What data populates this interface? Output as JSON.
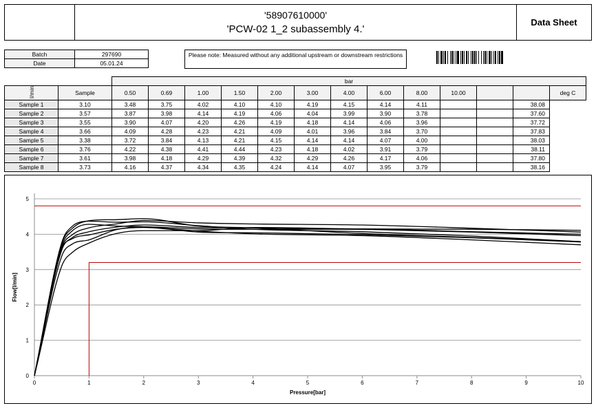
{
  "header": {
    "line1": "'58907610000'",
    "line2": "'PCW-02 1_2 subassembly 4.'",
    "doc_type": "Data Sheet"
  },
  "info": {
    "batch_label": "Batch",
    "batch_value": "297690",
    "date_label": "Date",
    "date_value": "05.01.24"
  },
  "note": "Please note: Measured without any additional upstream or downstream restrictions",
  "table": {
    "unit_label": "l/min",
    "pressure_unit": "bar",
    "sample_header": "Sample",
    "pressures": [
      "0.50",
      "0.69",
      "1.00",
      "1.50",
      "2.00",
      "3.00",
      "4.00",
      "6.00",
      "8.00",
      "10.00",
      "",
      ""
    ],
    "temp_header": "deg C",
    "rows": [
      {
        "name": "Sample 1",
        "values": [
          "3.10",
          "3.48",
          "3.75",
          "4.02",
          "4.10",
          "4.10",
          "4.19",
          "4.15",
          "4.14",
          "4.11",
          "",
          ""
        ],
        "temp": "38.08"
      },
      {
        "name": "Sample 2",
        "values": [
          "3.57",
          "3.87",
          "3.98",
          "4.14",
          "4.19",
          "4.06",
          "4.04",
          "3.99",
          "3.90",
          "3.78",
          "",
          ""
        ],
        "temp": "37.60"
      },
      {
        "name": "Sample 3",
        "values": [
          "3.55",
          "3.90",
          "4.07",
          "4.20",
          "4.26",
          "4.19",
          "4.18",
          "4.14",
          "4.06",
          "3.96",
          "",
          ""
        ],
        "temp": "37.72"
      },
      {
        "name": "Sample 4",
        "values": [
          "3.66",
          "4.09",
          "4.28",
          "4.23",
          "4.21",
          "4.09",
          "4.01",
          "3.96",
          "3.84",
          "3.70",
          "",
          ""
        ],
        "temp": "37.83"
      },
      {
        "name": "Sample 5",
        "values": [
          "3.38",
          "3.72",
          "3.84",
          "4.13",
          "4.21",
          "4.15",
          "4.14",
          "4.14",
          "4.07",
          "4.00",
          "",
          ""
        ],
        "temp": "38.03"
      },
      {
        "name": "Sample 6",
        "values": [
          "3.76",
          "4.22",
          "4.38",
          "4.41",
          "4.44",
          "4.23",
          "4.18",
          "4.02",
          "3.91",
          "3.79",
          "",
          ""
        ],
        "temp": "38.11"
      },
      {
        "name": "Sample 7",
        "values": [
          "3.61",
          "3.98",
          "4.18",
          "4.29",
          "4.39",
          "4.32",
          "4.29",
          "4.26",
          "4.17",
          "4.06",
          "",
          ""
        ],
        "temp": "37.80"
      },
      {
        "name": "Sample 8",
        "values": [
          "3.73",
          "4.16",
          "4.37",
          "4.34",
          "4.35",
          "4.24",
          "4.14",
          "4.07",
          "3.95",
          "3.79",
          "",
          ""
        ],
        "temp": "38.16"
      }
    ]
  },
  "chart_data": {
    "type": "line",
    "title": "",
    "xlabel": "Pressure[bar]",
    "ylabel": "Flow[l/min]",
    "xlim": [
      0,
      10
    ],
    "ylim": [
      0,
      5
    ],
    "xticks": [
      "0",
      "1",
      "2",
      "3",
      "4",
      "5",
      "6",
      "7",
      "8",
      "9",
      "10"
    ],
    "yticks": [
      "0",
      "1",
      "2",
      "3",
      "4",
      "5"
    ],
    "grid": "horizontal",
    "series_color": "#000000",
    "limit_color": "#c00000",
    "x": [
      0,
      0.5,
      0.69,
      1.0,
      1.5,
      2.0,
      3.0,
      4.0,
      6.0,
      8.0,
      10.0
    ],
    "series": [
      {
        "values": [
          0,
          3.1,
          3.48,
          3.75,
          4.02,
          4.1,
          4.1,
          4.19,
          4.15,
          4.14,
          4.11
        ]
      },
      {
        "values": [
          0,
          3.57,
          3.87,
          3.98,
          4.14,
          4.19,
          4.06,
          4.04,
          3.99,
          3.9,
          3.78
        ]
      },
      {
        "values": [
          0,
          3.55,
          3.9,
          4.07,
          4.2,
          4.26,
          4.19,
          4.18,
          4.14,
          4.06,
          3.96
        ]
      },
      {
        "values": [
          0,
          3.66,
          4.09,
          4.28,
          4.23,
          4.21,
          4.09,
          4.01,
          3.96,
          3.84,
          3.7
        ]
      },
      {
        "values": [
          0,
          3.38,
          3.72,
          3.84,
          4.13,
          4.21,
          4.15,
          4.14,
          4.14,
          4.07,
          4.0
        ]
      },
      {
        "values": [
          0,
          3.76,
          4.22,
          4.38,
          4.41,
          4.44,
          4.23,
          4.18,
          4.02,
          3.91,
          3.79
        ]
      },
      {
        "values": [
          0,
          3.61,
          3.98,
          4.18,
          4.29,
          4.39,
          4.32,
          4.29,
          4.26,
          4.17,
          4.06
        ]
      },
      {
        "values": [
          0,
          3.73,
          4.16,
          4.37,
          4.34,
          4.35,
          4.24,
          4.14,
          4.07,
          3.95,
          3.79
        ]
      }
    ],
    "upper_limit": {
      "y": 4.8,
      "x_from": 0,
      "x_to": 10
    },
    "lower_limit": {
      "y": 3.2,
      "x_from": 1,
      "x_to": 10
    }
  }
}
